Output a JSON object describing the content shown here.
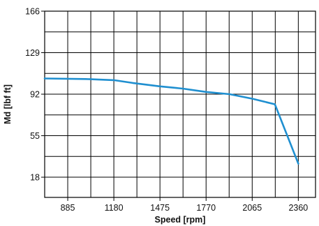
{
  "chart_data": {
    "type": "line",
    "title": "",
    "xlabel": "Speed [rpm]",
    "ylabel": "Md [lbf ft]",
    "xlim": [
      737.5,
      2470
    ],
    "ylim": [
      0,
      166
    ],
    "x_ticks": [
      885,
      1180,
      1475,
      1770,
      2065,
      2360
    ],
    "x_tick_labels": [
      "885",
      "1180",
      "1475",
      "1770",
      "2065",
      "2360"
    ],
    "y_ticks": [
      18,
      55,
      92,
      129,
      166
    ],
    "y_tick_labels": [
      "18",
      "55",
      "92",
      "129",
      "166"
    ],
    "grid": true,
    "line_color": "#1f8fd0",
    "series": [
      {
        "x": [
          737.5,
          1000,
          1180,
          1300,
          1475,
          1620,
          1770,
          1920,
          2065,
          2210,
          2360
        ],
        "y": [
          106,
          105.5,
          104.5,
          102,
          99,
          97,
          94,
          92,
          88,
          83,
          30
        ]
      }
    ]
  }
}
